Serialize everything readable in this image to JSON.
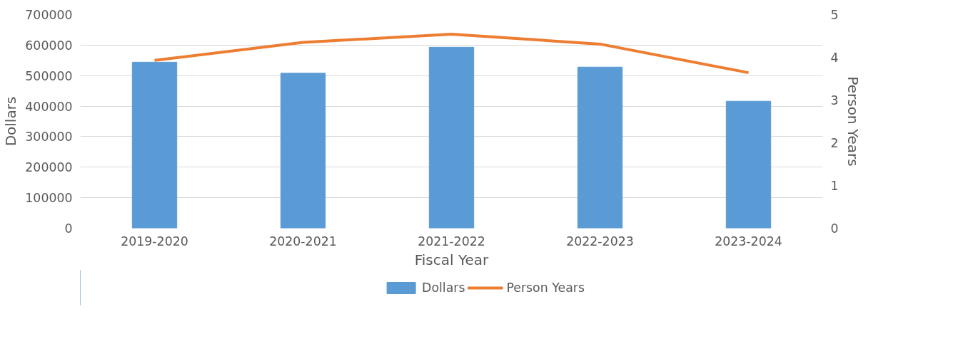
{
  "chart_data": {
    "type": "bar",
    "xlabel": "Fiscal Year",
    "ylabel": "Dollars",
    "y2label": "Person Years",
    "categories": [
      "2019-2020",
      "2020-2021",
      "2021-2022",
      "2022-2023",
      "2023-2024"
    ],
    "series": [
      {
        "name": "Dollars",
        "color": "#5b9bd5",
        "values": [
          544000,
          508000,
          593000,
          528000,
          416000
        ]
      },
      {
        "name": "Person Years",
        "type": "line",
        "axis": "y2",
        "color": "#ed7d31",
        "values": [
          3.93,
          4.35,
          4.54,
          4.31,
          3.64
        ]
      }
    ],
    "ylim": [
      0,
      700000
    ],
    "yticks": [
      0,
      100000,
      200000,
      300000,
      400000,
      500000,
      600000,
      700000
    ],
    "y2lim": [
      0,
      5
    ],
    "y2ticks": [
      0,
      1,
      2,
      3,
      4,
      5
    ],
    "grid": "y",
    "legend": "bottom",
    "marker": "none",
    "line_style": "solid"
  }
}
